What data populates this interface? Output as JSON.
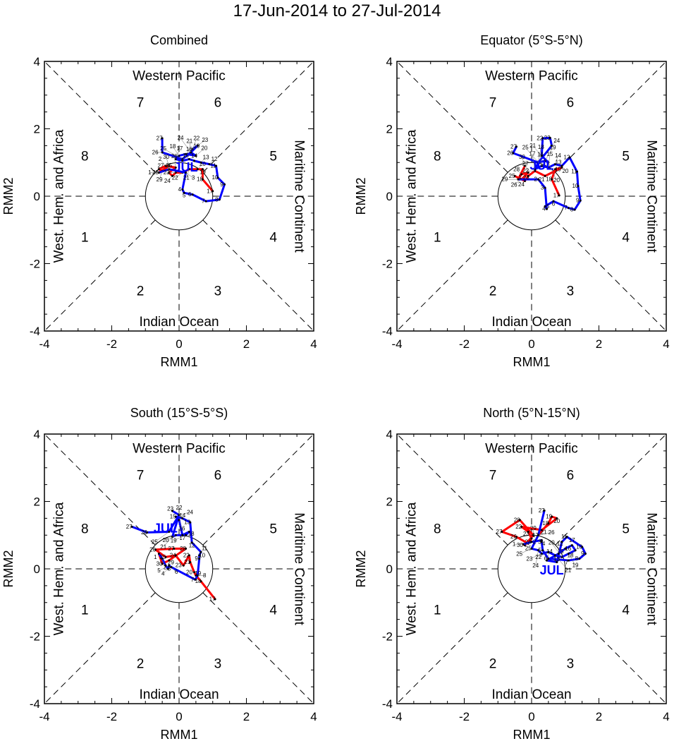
{
  "title": "17-Jun-2014 to 27-Jul-2014",
  "colors": {
    "june": "#ff0000",
    "july": "#0000ff"
  },
  "chart_data": [
    {
      "type": "line",
      "title": "Combined",
      "xlabel": "RMM1",
      "ylabel": "RMM2",
      "xlim": [
        -4,
        4
      ],
      "ylim": [
        -4,
        4
      ],
      "xticks": [
        "-4",
        "-2",
        "0",
        "2",
        "4"
      ],
      "yticks": [
        "-4",
        "-2",
        "0",
        "2",
        "4"
      ],
      "regions": {
        "top": "Western Pacific",
        "bottom": "Indian Ocean",
        "left": "West. Hem. and Africa",
        "right": "Maritime Continent"
      },
      "phases": [
        "1",
        "2",
        "3",
        "4",
        "5",
        "6",
        "7",
        "8"
      ],
      "month_label": "JUL",
      "month_label_pos": [
        0.2,
        0.9
      ],
      "series": [
        {
          "name": "June",
          "days": [
            17,
            18,
            19,
            20,
            21,
            22,
            23,
            24,
            25,
            26,
            27,
            28,
            29,
            30
          ],
          "x": [
            1.0,
            0.7,
            0.7,
            0.55,
            0.3,
            0.1,
            -0.1,
            -0.2,
            -0.3,
            -0.1,
            -0.4,
            -0.6,
            -0.5,
            -0.3
          ],
          "y": [
            0.15,
            0.5,
            0.8,
            0.8,
            0.8,
            0.7,
            0.7,
            0.6,
            0.7,
            0.85,
            0.9,
            0.8,
            0.75,
            0.9
          ]
        },
        {
          "name": "July",
          "days": [
            1,
            2,
            3,
            4,
            5,
            6,
            7,
            8,
            9,
            10,
            11,
            12,
            13,
            14,
            15,
            16,
            17,
            18,
            19,
            20,
            21,
            22,
            23,
            24,
            25,
            26,
            27
          ],
          "x": [
            -0.6,
            -0.3,
            0.2,
            0.1,
            0.15,
            0.4,
            0.8,
            1.2,
            1.35,
            1.15,
            1.1,
            0.9,
            0.65,
            0.45,
            0.3,
            0.1,
            -0.1,
            0.0,
            0.2,
            0.5,
            0.35,
            0.4,
            0.55,
            0.35,
            0.1,
            -0.5,
            -0.5
          ],
          "y": [
            0.7,
            0.8,
            0.7,
            0.2,
            0.1,
            0.05,
            -0.15,
            -0.1,
            0.35,
            0.55,
            0.9,
            0.95,
            1.0,
            1.05,
            1.1,
            1.05,
            1.1,
            1.2,
            1.25,
            1.2,
            1.3,
            1.4,
            1.5,
            1.3,
            1.1,
            1.3,
            1.72
          ]
        }
      ]
    },
    {
      "type": "line",
      "title": "Equator (5°S-5°N)",
      "xlabel": "RMM1",
      "ylabel": "RMM2",
      "xlim": [
        -4,
        4
      ],
      "ylim": [
        -4,
        4
      ],
      "xticks": [
        "-4",
        "-2",
        "0",
        "2",
        "4"
      ],
      "yticks": [
        "-4",
        "-2",
        "0",
        "2",
        "4"
      ],
      "regions": {
        "top": "Western Pacific",
        "bottom": "Indian Ocean",
        "left": "West. Hem. and Africa",
        "right": "Maritime Continent"
      },
      "phases": [
        "1",
        "2",
        "3",
        "4",
        "5",
        "6",
        "7",
        "8"
      ],
      "month_label": "JUL",
      "month_label_pos": [
        0.3,
        0.95
      ],
      "series": [
        {
          "name": "June",
          "days": [
            17,
            18,
            19,
            20,
            21,
            22,
            23,
            24,
            25,
            26,
            27,
            28,
            29,
            30
          ],
          "x": [
            0.82,
            0.6,
            0.7,
            0.9,
            0.4,
            0.1,
            -0.1,
            -0.2,
            -0.5,
            -0.3,
            -0.1,
            -0.3,
            -0.4,
            -0.2
          ],
          "y": [
            0.02,
            0.5,
            0.8,
            0.85,
            0.6,
            0.75,
            0.6,
            0.45,
            0.6,
            0.5,
            0.7,
            0.65,
            0.5,
            0.9
          ]
        },
        {
          "name": "July",
          "days": [
            1,
            2,
            3,
            4,
            5,
            6,
            7,
            8,
            9,
            10,
            11,
            12,
            13,
            14,
            15,
            16,
            17,
            18,
            19,
            20,
            21,
            22,
            23,
            24,
            25,
            26,
            27
          ],
          "x": [
            -0.4,
            0.2,
            0.4,
            0.45,
            0.4,
            0.65,
            1.1,
            1.28,
            1.45,
            1.38,
            1.35,
            1.13,
            0.9,
            0.7,
            0.5,
            0.3,
            0.1,
            0.2,
            0.4,
            0.5,
            0.3,
            0.33,
            0.55,
            0.6,
            0.2,
            -0.55,
            -0.45
          ],
          "y": [
            0.5,
            0.5,
            0.25,
            -0.38,
            -0.3,
            -0.15,
            -0.35,
            -0.4,
            -0.13,
            0.3,
            0.73,
            1.15,
            0.9,
            0.95,
            0.85,
            0.9,
            0.8,
            1.0,
            1.05,
            1.0,
            1.2,
            1.72,
            1.73,
            1.5,
            1.0,
            1.28,
            1.47
          ]
        }
      ]
    },
    {
      "type": "line",
      "title": "South (15°S-5°S)",
      "xlabel": "RMM1",
      "ylabel": "RMM2",
      "xlim": [
        -4,
        4
      ],
      "ylim": [
        -4,
        4
      ],
      "xticks": [
        "-4",
        "-2",
        "0",
        "2",
        "4"
      ],
      "yticks": [
        "-4",
        "-2",
        "0",
        "2",
        "4"
      ],
      "regions": {
        "top": "Western Pacific",
        "bottom": "Indian Ocean",
        "left": "West. Hem. and Africa",
        "right": "Maritime Continent"
      },
      "phases": [
        "1",
        "2",
        "3",
        "4",
        "5",
        "6",
        "7",
        "8"
      ],
      "month_label": "JUL",
      "month_label_pos": [
        -0.4,
        1.25
      ],
      "series": [
        {
          "name": "June",
          "days": [
            17,
            18,
            19,
            20,
            21,
            22,
            23,
            24,
            25,
            26,
            27,
            28,
            29,
            30
          ],
          "x": [
            1.07,
            0.65,
            0.5,
            0.45,
            0.33,
            0.3,
            0.13,
            -0.1,
            -0.4,
            -0.7,
            -0.15,
            0.2,
            -0.3,
            -0.5
          ],
          "y": [
            -0.9,
            -0.37,
            -0.2,
            -0.1,
            0.2,
            0.4,
            0.1,
            0.4,
            0.35,
            0.57,
            0.6,
            0.6,
            0.25,
            0.15
          ]
        },
        {
          "name": "July",
          "days": [
            1,
            2,
            3,
            4,
            5,
            6,
            7,
            8,
            9,
            10,
            11,
            12,
            13,
            14,
            15,
            16,
            17,
            18,
            19,
            20,
            21,
            22,
            23,
            24,
            25,
            26,
            27
          ],
          "x": [
            -0.6,
            -0.5,
            -0.4,
            -0.33,
            -0.3,
            -0.23,
            0.48,
            0.55,
            0.6,
            0.6,
            0.65,
            0.38,
            0.33,
            0.1,
            -0.1,
            0.0,
            0.1,
            0.3,
            0.2,
            -0.1,
            -0.2,
            0.0,
            -0.2,
            0.0,
            -0.3,
            -0.95,
            -1.4
          ],
          "y": [
            0.45,
            0.3,
            0.1,
            0.0,
            0.1,
            0.05,
            -0.32,
            -0.2,
            0.3,
            0.4,
            0.5,
            0.78,
            1.38,
            1.5,
            1.55,
            1.45,
            1.0,
            1.1,
            1.0,
            1.0,
            0.95,
            1.6,
            1.72,
            1.6,
            1.1,
            1.08,
            1.25
          ]
        }
      ]
    },
    {
      "type": "line",
      "title": "North (5°N-15°N)",
      "xlabel": "RMM1",
      "ylabel": "RMM2",
      "xlim": [
        -4,
        4
      ],
      "ylim": [
        -4,
        4
      ],
      "xticks": [
        "-4",
        "-2",
        "0",
        "2",
        "4"
      ],
      "yticks": [
        "-4",
        "-2",
        "0",
        "2",
        "4"
      ],
      "regions": {
        "top": "Western Pacific",
        "bottom": "Indian Ocean",
        "left": "West. Hem. and Africa",
        "right": "Maritime Continent"
      },
      "phases": [
        "1",
        "2",
        "3",
        "4",
        "5",
        "6",
        "7",
        "8"
      ],
      "month_label": "JUL",
      "month_label_pos": [
        0.6,
        0.0
      ],
      "series": [
        {
          "name": "June",
          "days": [
            17,
            18,
            19,
            20,
            21,
            22,
            23,
            24,
            25,
            26,
            27,
            28,
            29,
            30
          ],
          "x": [
            0.2,
            0.5,
            0.6,
            0.75,
            0.3,
            -0.3,
            -0.1,
            0.0,
            -0.1,
            -0.45,
            -0.88,
            -0.35,
            0.05,
            -0.2
          ],
          "y": [
            1.0,
            1.35,
            1.55,
            1.5,
            1.15,
            1.25,
            1.1,
            0.9,
            0.75,
            0.95,
            1.1,
            1.45,
            1.0,
            0.7
          ]
        },
        {
          "name": "July",
          "days": [
            1,
            2,
            3,
            4,
            5,
            6,
            7,
            8,
            9,
            10,
            11,
            12,
            13,
            14,
            15,
            16,
            17,
            18,
            19,
            20,
            21,
            22,
            23,
            24,
            25,
            26,
            27
          ],
          "x": [
            -0.25,
            0.0,
            0.3,
            0.3,
            0.33,
            0.5,
            1.1,
            1.42,
            1.6,
            1.5,
            1.05,
            0.9,
            0.75,
            0.45,
            0.8,
            1.0,
            1.2,
            1.3,
            1.1,
            0.9,
            0.7,
            0.5,
            0.3,
            0.2,
            0.0,
            0.2,
            0.38
          ],
          "y": [
            0.73,
            0.8,
            0.85,
            0.8,
            0.55,
            0.3,
            0.25,
            0.3,
            0.45,
            0.65,
            0.95,
            0.8,
            0.2,
            0.25,
            0.45,
            0.6,
            0.7,
            0.55,
            0.45,
            0.35,
            0.4,
            0.5,
            0.45,
            0.55,
            0.6,
            1.0,
            1.73
          ]
        }
      ]
    }
  ]
}
